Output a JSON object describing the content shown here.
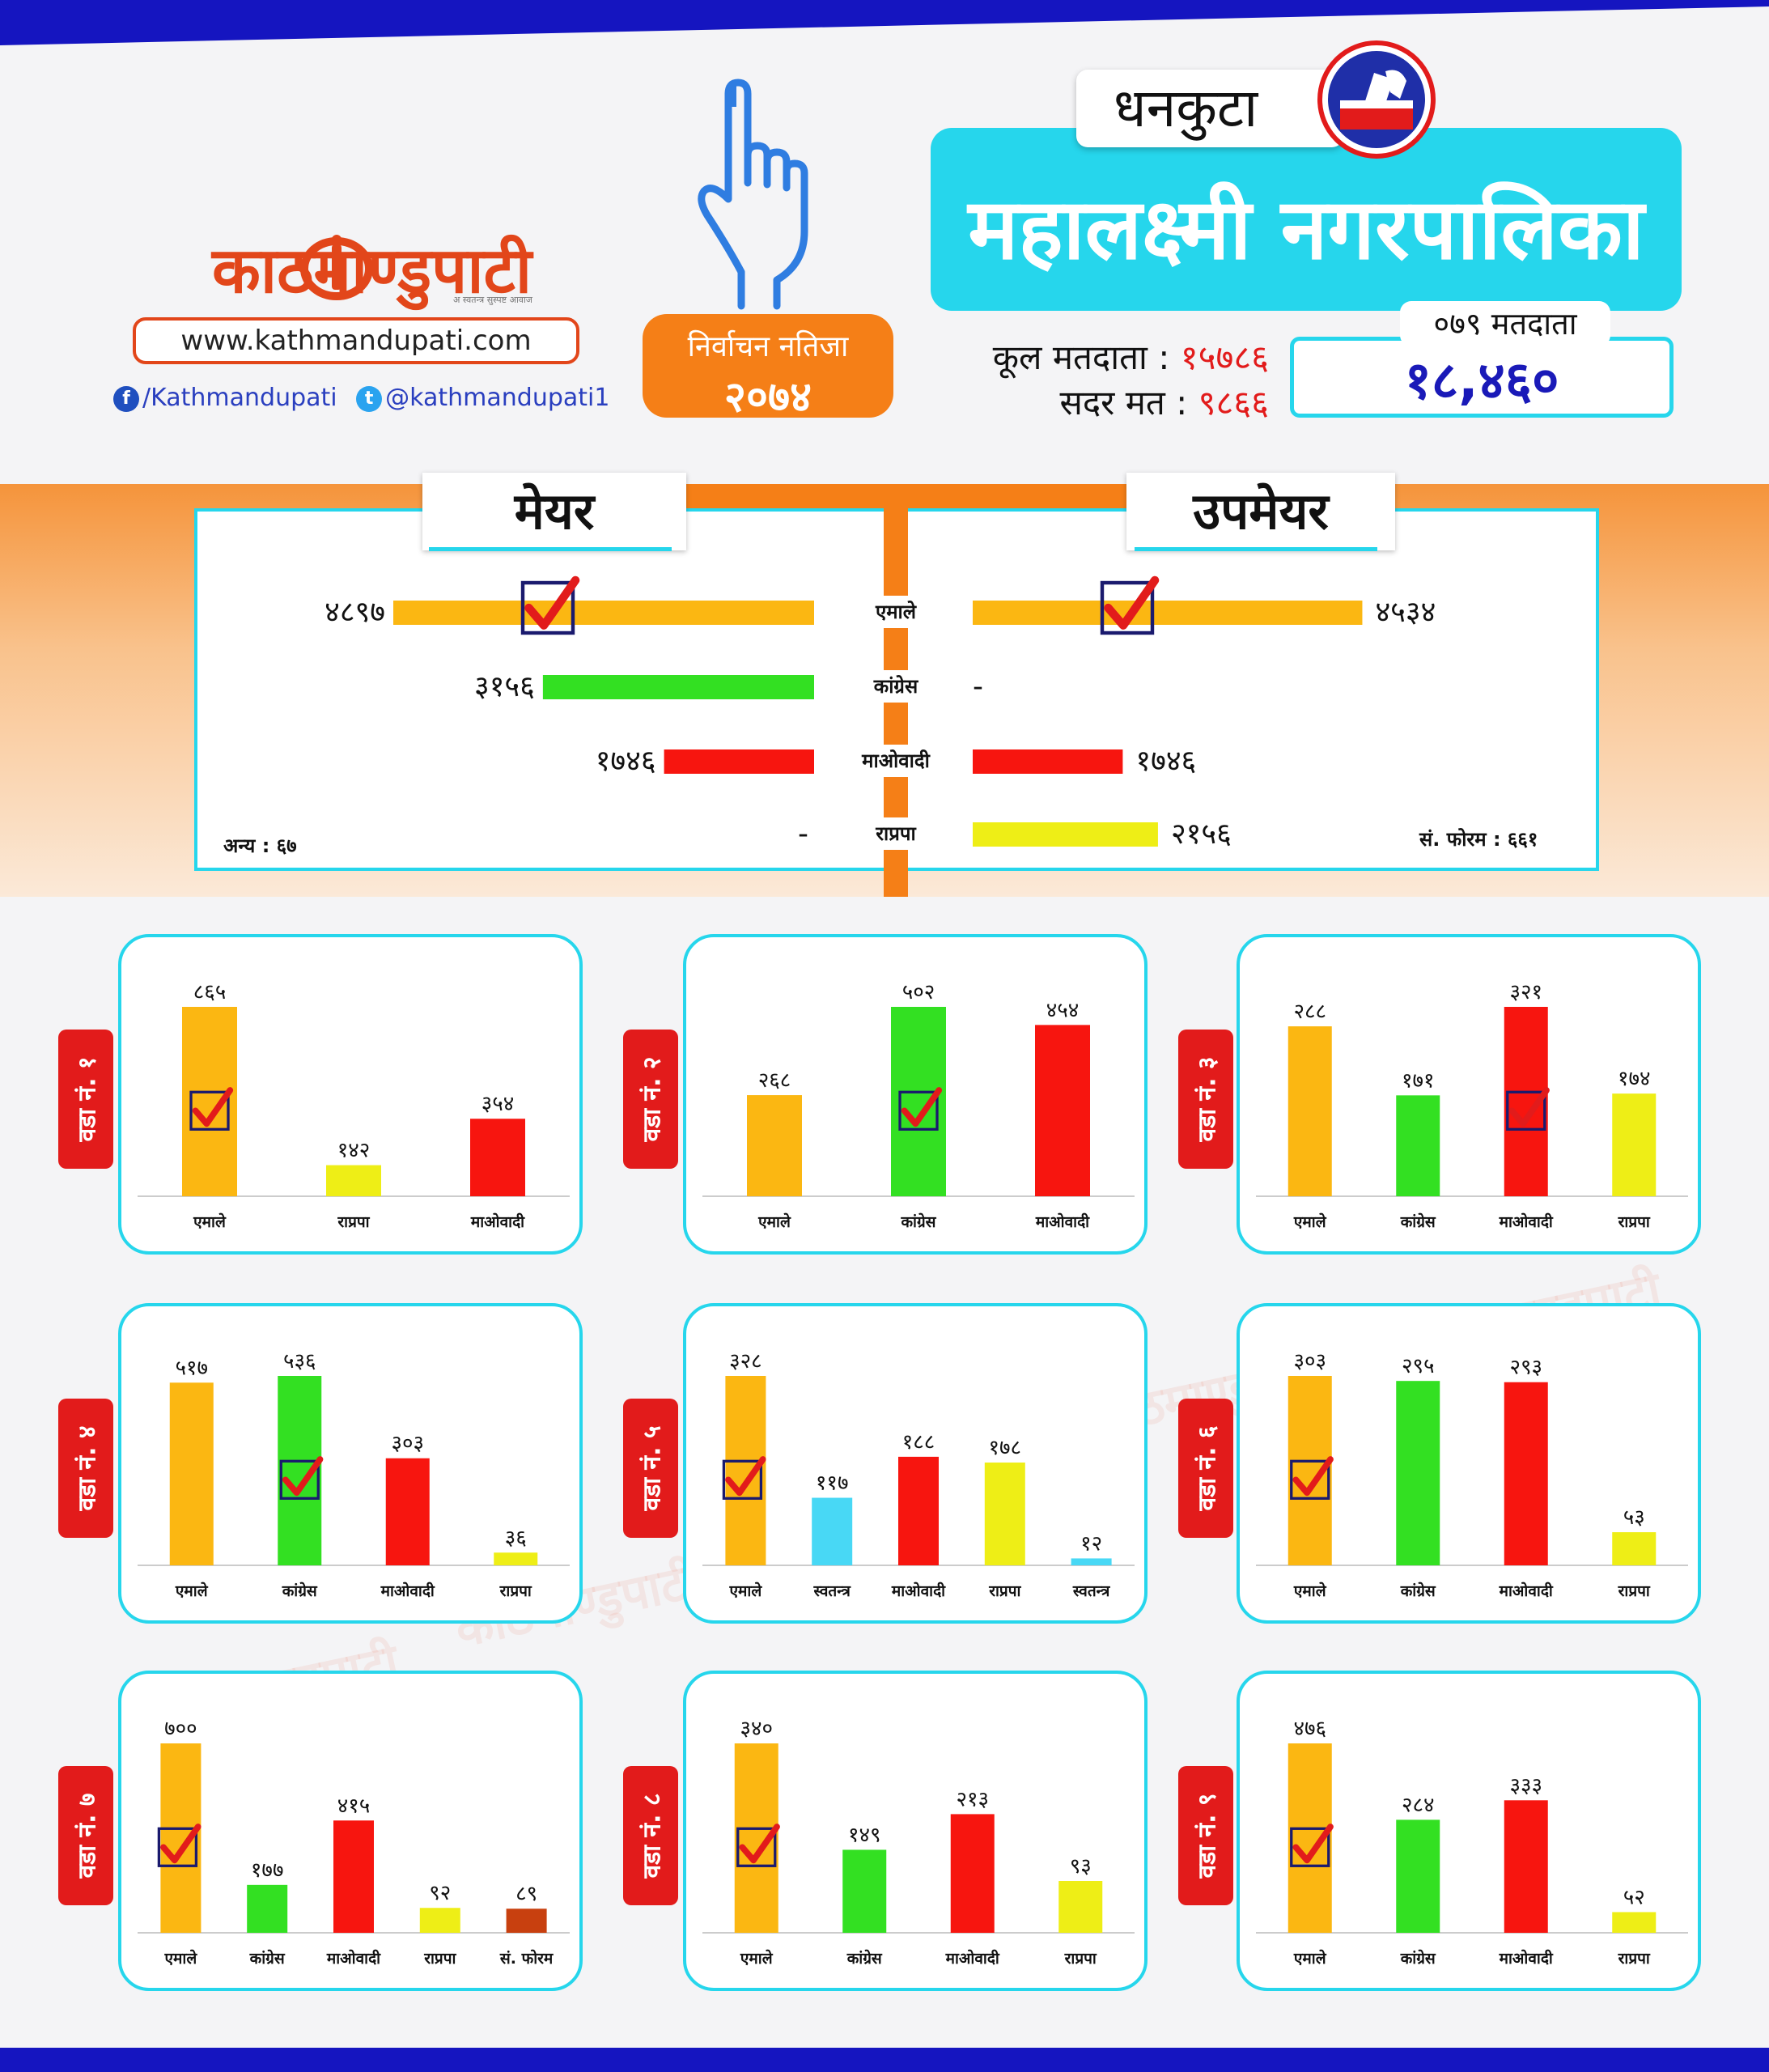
{
  "brand": {
    "name": "काठमाण्डुपाटी",
    "tagline": "अ स्वतन्त्र सुस्पष्ट आवाज",
    "url": "www.kathmandupati.com",
    "facebook": "/Kathmandupati",
    "twitter": "@kathmandupati1",
    "icons": {
      "facebook": "facebook-icon",
      "twitter": "twitter-icon"
    }
  },
  "badge": {
    "line1": "निर्वाचन नतिजा",
    "line2": "२०७४"
  },
  "district": "धनकुटा",
  "municipality": "महालक्ष्मी नगरपालिका",
  "voters": {
    "total_label": "कूल मतदाता :",
    "total_value": "१५७८६",
    "valid_label": "सदर मत :",
    "valid_value": "९८६६",
    "label_079": "०७९ मतदाता",
    "value_079": "१८,४६०"
  },
  "colors": {
    "uml": "#fbb712",
    "congress": "#33e022",
    "maoist": "#f7150f",
    "rpp": "#eeee16",
    "independent": "#48d8f5",
    "forum": "#c8400f",
    "accent": "#26d6ec",
    "orange": "#f57f17",
    "check": "#e21b1b",
    "checkbox": "#1a1a6e"
  },
  "mayor_section": {
    "mayor_title": "मेयर",
    "deputy_title": "उपमेयर",
    "max_votes": 4897,
    "rows": [
      {
        "party": "एमाले",
        "color_key": "uml",
        "mayor": 4897,
        "mayor_text": "४८९७",
        "deputy": 4534,
        "deputy_text": "४५३४",
        "mayor_win": true,
        "deputy_win": true
      },
      {
        "party": "कांग्रेस",
        "color_key": "congress",
        "mayor": 3156,
        "mayor_text": "३१५६",
        "deputy": null,
        "deputy_text": "-",
        "mayor_win": false,
        "deputy_win": false
      },
      {
        "party": "माओवादी",
        "color_key": "maoist",
        "mayor": 1746,
        "mayor_text": "१७४६",
        "deputy": 1746,
        "deputy_text": "१७४६",
        "mayor_win": false,
        "deputy_win": false
      },
      {
        "party": "राप्रपा",
        "color_key": "rpp",
        "mayor": null,
        "mayor_text": "-",
        "deputy": 2156,
        "deputy_text": "२१५६",
        "mayor_win": false,
        "deputy_win": false
      }
    ],
    "other_note": "अन्य : ६७",
    "forum_note": "सं. फोरम : ६६१"
  },
  "chart_data": [
    {
      "type": "bar",
      "ward": "वडा नं. १",
      "categories": [
        "एमाले",
        "राप्रपा",
        "माओवादी"
      ],
      "colors": [
        "uml",
        "rpp",
        "maoist"
      ],
      "values": [
        865,
        142,
        354
      ],
      "labels": [
        "८६५",
        "१४२",
        "३५४"
      ],
      "winner": 0
    },
    {
      "type": "bar",
      "ward": "वडा नं. २",
      "categories": [
        "एमाले",
        "कांग्रेस",
        "माओवादी"
      ],
      "colors": [
        "uml",
        "congress",
        "maoist"
      ],
      "values": [
        268,
        502,
        454
      ],
      "labels": [
        "२६८",
        "५०२",
        "४५४"
      ],
      "winner": 1
    },
    {
      "type": "bar",
      "ward": "वडा नं. ३",
      "categories": [
        "एमाले",
        "कांग्रेस",
        "माओवादी",
        "राप्रपा"
      ],
      "colors": [
        "uml",
        "congress",
        "maoist",
        "rpp"
      ],
      "values": [
        288,
        171,
        321,
        174
      ],
      "labels": [
        "२८८",
        "१७१",
        "३२१",
        "१७४"
      ],
      "winner": 2
    },
    {
      "type": "bar",
      "ward": "वडा नं. ४",
      "categories": [
        "एमाले",
        "कांग्रेस",
        "माओवादी",
        "राप्रपा"
      ],
      "colors": [
        "uml",
        "congress",
        "maoist",
        "rpp"
      ],
      "values": [
        517,
        536,
        303,
        36
      ],
      "labels": [
        "५१७",
        "५३६",
        "३०३",
        "३६"
      ],
      "winner": 1
    },
    {
      "type": "bar",
      "ward": "वडा नं. ५",
      "categories": [
        "एमाले",
        "स्वतन्त्र",
        "माओवादी",
        "राप्रपा",
        "स्वतन्त्र"
      ],
      "colors": [
        "uml",
        "independent",
        "maoist",
        "rpp",
        "independent"
      ],
      "values": [
        328,
        117,
        188,
        178,
        12
      ],
      "labels": [
        "३२८",
        "११७",
        "१८८",
        "१७८",
        "१२"
      ],
      "winner": 0
    },
    {
      "type": "bar",
      "ward": "वडा नं. ६",
      "categories": [
        "एमाले",
        "कांग्रेस",
        "माओवादी",
        "राप्रपा"
      ],
      "colors": [
        "uml",
        "congress",
        "maoist",
        "rpp"
      ],
      "values": [
        303,
        295,
        293,
        53
      ],
      "labels": [
        "३०३",
        "२९५",
        "२९३",
        "५३"
      ],
      "winner": 0
    },
    {
      "type": "bar",
      "ward": "वडा नं. ७",
      "categories": [
        "एमाले",
        "कांग्रेस",
        "माओवादी",
        "राप्रपा",
        "सं. फोरम"
      ],
      "colors": [
        "uml",
        "congress",
        "maoist",
        "rpp",
        "forum"
      ],
      "values": [
        700,
        177,
        415,
        92,
        89
      ],
      "labels": [
        "७००",
        "१७७",
        "४१५",
        "९२",
        "८९"
      ],
      "winner": 0
    },
    {
      "type": "bar",
      "ward": "वडा नं. ८",
      "categories": [
        "एमाले",
        "कांग्रेस",
        "माओवादी",
        "राप्रपा"
      ],
      "colors": [
        "uml",
        "congress",
        "maoist",
        "rpp"
      ],
      "values": [
        340,
        149,
        213,
        93
      ],
      "labels": [
        "३४०",
        "१४९",
        "२१३",
        "९३"
      ],
      "winner": 0
    },
    {
      "type": "bar",
      "ward": "वडा नं. ९",
      "categories": [
        "एमाले",
        "कांग्रेस",
        "माओवादी",
        "राप्रपा"
      ],
      "colors": [
        "uml",
        "congress",
        "maoist",
        "rpp"
      ],
      "values": [
        476,
        284,
        333,
        52
      ],
      "labels": [
        "४७६",
        "२८४",
        "३३३",
        "५२"
      ],
      "winner": 0
    }
  ]
}
